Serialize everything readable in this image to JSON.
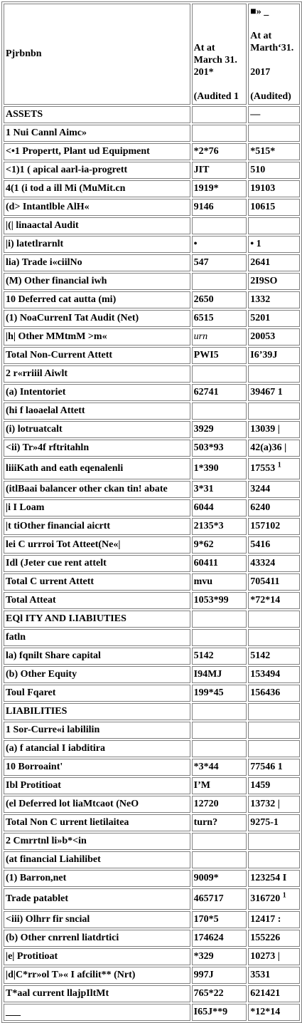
{
  "header": {
    "col0": "Pjrbnbn",
    "col1_lines": [
      "At at",
      "March 31.",
      "201*",
      "",
      "(Audited 1"
    ],
    "col2_lines": [
      "■» _",
      "",
      "At at",
      "Marth‘31.",
      "",
      "2017",
      "",
      "(Audited)"
    ]
  },
  "rows": [
    {
      "label": "ASSETS",
      "v1": "",
      "v2": "—"
    },
    {
      "label": "1 Nui Cannl Aimc»",
      "v1": "",
      "v2": ""
    },
    {
      "label": "<•1 Propertt, Plant ud Equipment",
      "v1": "*2*76",
      "v2": "*515*"
    },
    {
      "label": "<1)1 ( apical aarl-ia-progrett",
      "v1": "JIT",
      "v2": "510"
    },
    {
      "label": "4(1 (i tod a ill Mi (MuMit.cn",
      "v1": "1919*",
      "v2": "19103"
    },
    {
      "label": "(d> Intantlble AlH«",
      "v1": "9146",
      "v2": "10615"
    },
    {
      "label": "|(| linaactal Audit",
      "v1": "",
      "v2": ""
    },
    {
      "label": "|i) latetlrarnlt",
      "v1": "•",
      "v2": "• 1"
    },
    {
      "label": "lia) Trade i«ciilNo",
      "v1": "547",
      "v2": "2641"
    },
    {
      "label": "(M) Other financial iwh",
      "v1": "",
      "v2": "2I9SO"
    },
    {
      "label": "10 Deferred cat autta (mi)",
      "v1": "2650",
      "v2": "1332"
    },
    {
      "label": "(1) NoaCurrenI Tat Audit (Net)",
      "v1": "6515",
      "v2": "5201"
    },
    {
      "label": "|h| Other MMtmM >m«",
      "v1": "urn",
      "v2": "20053",
      "v1_italic": true
    },
    {
      "label": "Total Non-Current Attett",
      "v1": "PWI5",
      "v2": "I6’39J"
    },
    {
      "label": "2 r«rriiil Aiwlt",
      "v1": "",
      "v2": ""
    },
    {
      "label": "(a) Intentoriet",
      "v1": "62741",
      "v2": "39467 1"
    },
    {
      "label": "(hi f laoaelal Attett",
      "v1": "",
      "v2": ""
    },
    {
      "label": "(i) lotruatcalt",
      "v1": "3929",
      "v2": "13039 |"
    },
    {
      "label": "<ii) Tr»4f rftritahln",
      "v1": "503*93",
      "v2": "42(a)36 |"
    },
    {
      "label": "liiiKath and eath eqenalenli",
      "v1": "1*390",
      "v2": "17553",
      "v2_sup": "1",
      "tall": true
    },
    {
      "label": "(itlBaai balancer other ckan tin! abate",
      "v1": "3*31",
      "v2": "3244"
    },
    {
      "label": "|i I Loam",
      "v1": "6044",
      "v2": "6240"
    },
    {
      "label": "|t tiOther financial aicrtt",
      "v1": "2135*3",
      "v2": "157102"
    },
    {
      "label": "lei C urrroi Tot Atteet(Ne«|",
      "v1": "9*62",
      "v2": "5416"
    },
    {
      "label": "Idl (Jeter cue rent attelt",
      "v1": "60411",
      "v2": "43324"
    },
    {
      "label": "Total C urrent Attett",
      "v1": "mvu",
      "v2": "705411"
    },
    {
      "label": "Total Atteat",
      "v1": "1053*99",
      "v2": "*72*14"
    },
    {
      "label": "EQl ITY AND I.IABIUTIES",
      "v1": "",
      "v2": ""
    },
    {
      "label": "fatln",
      "v1": "",
      "v2": ""
    },
    {
      "label": "la) fqnilt Share capital",
      "v1": "5142",
      "v2": "5142"
    },
    {
      "label": "(b) Other Equity",
      "v1": "I94MJ",
      "v2": "153494"
    },
    {
      "label": "Toul Fqaret",
      "v1": "199*45",
      "v2": "156436"
    },
    {
      "label": "LIABILITIES",
      "v1": "",
      "v2": ""
    },
    {
      "label": "1 Sor-Curre«i labililin",
      "v1": "",
      "v2": ""
    },
    {
      "label": "(a) f atancial I iabditira",
      "v1": "",
      "v2": ""
    },
    {
      "label": "10 Borroaint'",
      "v1": "*3*44",
      "v2": "77546 1",
      "label_partial_normal": true
    },
    {
      "label": "Ibl Protitioat",
      "v1": "I’M",
      "v2": "1459"
    },
    {
      "label": "(el Deferred lot liaMtcaot (NeO",
      "v1": "12720",
      "v2": "13732 |"
    },
    {
      "label": "Total Non C urrent lietilaitea",
      "v1": "turn?",
      "v2": "9275-1"
    },
    {
      "label": "2 Cmrrtnl li»b*<in",
      "v1": "",
      "v2": ""
    },
    {
      "label": "(at financial Liahilibet",
      "v1": "",
      "v2": ""
    },
    {
      "label": "(1) Barron,net",
      "v1": "9009*",
      "v2": "123254 I"
    },
    {
      "label": "Trade patablet",
      "v1": "465717",
      "v2": "316720",
      "v2_sup": "1",
      "tall": true
    },
    {
      "label": "<iii) Olhrr fir sncial",
      "v1": "170*5",
      "v2": "12417 :"
    },
    {
      "label": "(b) Other cnrrenl liatdrtici",
      "v1": "174624",
      "v2": "155226"
    },
    {
      "label": "|e| Protitioat",
      "v1": "*329",
      "v2": "10273 |"
    },
    {
      "label": "|d|C*rr»ol T»« I afcilit** (Nrt)",
      "v1": "997J",
      "v2": "3531"
    },
    {
      "label": "T*aal current llajpIltMt",
      "v1": "765*22",
      "v2": "621421"
    },
    {
      "label": "___",
      "v1": "I65J**9",
      "v2": "*12*14"
    }
  ]
}
